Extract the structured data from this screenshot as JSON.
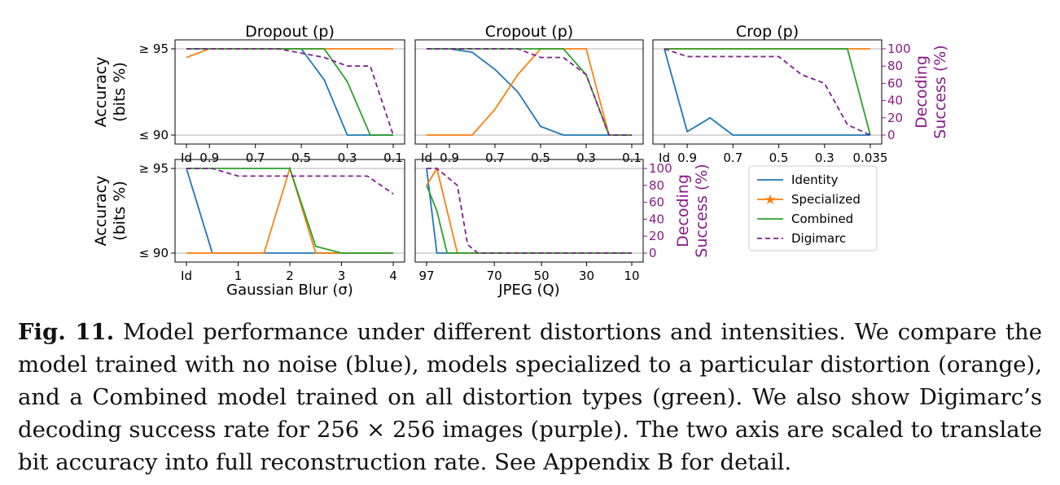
{
  "colors": {
    "Identity": "#1f77b4",
    "Specialized": "#ff7f0e",
    "Combined": "#2ca02c",
    "Digimarc": "#7f1f8f",
    "axis_purple": "#8b1a8b"
  },
  "axis_labels": {
    "accuracy": [
      "Accuracy",
      "(bits %)"
    ],
    "decoding": [
      "Decoding",
      "Success (%)"
    ],
    "ytick_top": "≥ 95",
    "ytick_bottom": "≤ 90",
    "right_ticks": [
      "0",
      "20",
      "40",
      "60",
      "80",
      "100"
    ]
  },
  "legend": [
    "Identity",
    "Specialized",
    "Combined",
    "Digimarc"
  ],
  "chart_data": [
    {
      "type": "line",
      "title": "Dropout (p)",
      "xlabel": "",
      "x_ticks": [
        "Id",
        "0.9",
        "0.7",
        "0.5",
        "0.3",
        "0.1"
      ],
      "x": [
        0,
        1,
        2,
        3,
        4,
        5,
        6,
        7,
        8,
        9
      ],
      "ylim": [
        90,
        95
      ],
      "y2lim": [
        0,
        100
      ],
      "series": [
        {
          "name": "Identity",
          "values": [
            95,
            95,
            95,
            95,
            95,
            95,
            93.2,
            90,
            90,
            90
          ]
        },
        {
          "name": "Specialized",
          "values": [
            94.5,
            95,
            95,
            95,
            95,
            95,
            95,
            95,
            95,
            95
          ]
        },
        {
          "name": "Combined",
          "values": [
            95,
            95,
            95,
            95,
            95,
            95,
            95,
            93.1,
            90,
            90
          ]
        },
        {
          "name": "Digimarc",
          "values": [
            100,
            100,
            100,
            100,
            100,
            95,
            90,
            80,
            80,
            0
          ]
        }
      ]
    },
    {
      "type": "line",
      "title": "Cropout (p)",
      "xlabel": "",
      "x_ticks": [
        "Id",
        "0.9",
        "0.7",
        "0.5",
        "0.3",
        "0.1"
      ],
      "x": [
        0,
        1,
        2,
        3,
        4,
        5,
        6,
        7,
        8,
        9
      ],
      "ylim": [
        90,
        95
      ],
      "y2lim": [
        0,
        100
      ],
      "series": [
        {
          "name": "Identity",
          "values": [
            95,
            95,
            94.8,
            93.8,
            92.5,
            90.5,
            90,
            90,
            90,
            90
          ]
        },
        {
          "name": "Specialized",
          "values": [
            90,
            90,
            90,
            91.5,
            93.5,
            95,
            95,
            95,
            90,
            90
          ]
        },
        {
          "name": "Combined",
          "values": [
            95,
            95,
            95,
            95,
            95,
            95,
            95,
            93.5,
            90,
            90
          ]
        },
        {
          "name": "Digimarc",
          "values": [
            100,
            100,
            100,
            100,
            100,
            90,
            90,
            70,
            0,
            0
          ]
        }
      ]
    },
    {
      "type": "line",
      "title": "Crop (p)",
      "xlabel": "",
      "x_ticks": [
        "Id",
        "0.9",
        "0.7",
        "0.5",
        "0.3",
        "0.035"
      ],
      "x": [
        0,
        1,
        2,
        3,
        4,
        5,
        6,
        7,
        8,
        9
      ],
      "ylim": [
        90,
        95
      ],
      "y2lim": [
        0,
        100
      ],
      "series": [
        {
          "name": "Identity",
          "values": [
            95,
            90.2,
            91,
            90,
            90,
            90,
            90,
            90,
            90,
            90
          ]
        },
        {
          "name": "Specialized",
          "values": [
            95,
            95,
            95,
            95,
            95,
            95,
            95,
            95,
            95,
            95
          ]
        },
        {
          "name": "Combined",
          "values": [
            95,
            95,
            95,
            95,
            95,
            95,
            95,
            95,
            95,
            90
          ]
        },
        {
          "name": "Digimarc",
          "values": [
            100,
            91,
            91,
            91,
            91,
            91,
            70,
            60,
            12,
            0
          ]
        }
      ]
    },
    {
      "type": "line",
      "title": "",
      "xlabel": "Gaussian Blur (σ)",
      "x_ticks": [
        "Id",
        "1",
        "2",
        "3",
        "4"
      ],
      "x": [
        0,
        0.5,
        1,
        1.5,
        2,
        2.5,
        3,
        3.5,
        4
      ],
      "ylim": [
        90,
        95
      ],
      "y2lim": [
        0,
        100
      ],
      "series": [
        {
          "name": "Identity",
          "values": [
            95,
            90,
            90,
            90,
            90,
            90,
            90,
            90,
            90
          ]
        },
        {
          "name": "Specialized",
          "values": [
            90,
            90,
            90,
            90,
            95,
            90,
            90,
            90,
            90
          ]
        },
        {
          "name": "Combined",
          "values": [
            95,
            95,
            95,
            95,
            95,
            90.4,
            90,
            90,
            90
          ]
        },
        {
          "name": "Digimarc",
          "values": [
            100,
            100,
            91,
            91,
            91,
            91,
            91,
            91,
            70
          ]
        }
      ]
    },
    {
      "type": "line",
      "title": "",
      "xlabel": "JPEG (Q)",
      "x_ticks": [
        "97",
        "70",
        "50",
        "30",
        "10"
      ],
      "x": [
        97,
        95,
        90,
        85,
        80,
        75,
        70,
        60,
        50,
        40,
        30,
        20,
        10
      ],
      "ylim": [
        90,
        95
      ],
      "y2lim": [
        0,
        100
      ],
      "series": [
        {
          "name": "Identity",
          "values": [
            95,
            90,
            90,
            90,
            90,
            90,
            90,
            90,
            90,
            90,
            90,
            90,
            90
          ]
        },
        {
          "name": "Specialized",
          "values": [
            94,
            95,
            92.5,
            90,
            90,
            90,
            90,
            90,
            90,
            90,
            90,
            90,
            90
          ]
        },
        {
          "name": "Combined",
          "values": [
            94,
            92.5,
            90,
            90,
            90,
            90,
            90,
            90,
            90,
            90,
            90,
            90,
            90
          ]
        },
        {
          "name": "Digimarc",
          "values": [
            100,
            100,
            90,
            80,
            10,
            0,
            0,
            0,
            0,
            0,
            0,
            0,
            0
          ]
        }
      ]
    }
  ],
  "caption": {
    "label": "Fig. 11.",
    "text": "Model performance under different distortions and intensities. We compare the model trained with no noise (blue), models specialized to a particular distortion (orange), and a Combined model trained on all distortion types (green). We also show Digimarc’s decoding success rate for 256 × 256 images (purple). The two axis are scaled to translate bit accuracy into full reconstruction rate. See Appendix B for detail."
  }
}
